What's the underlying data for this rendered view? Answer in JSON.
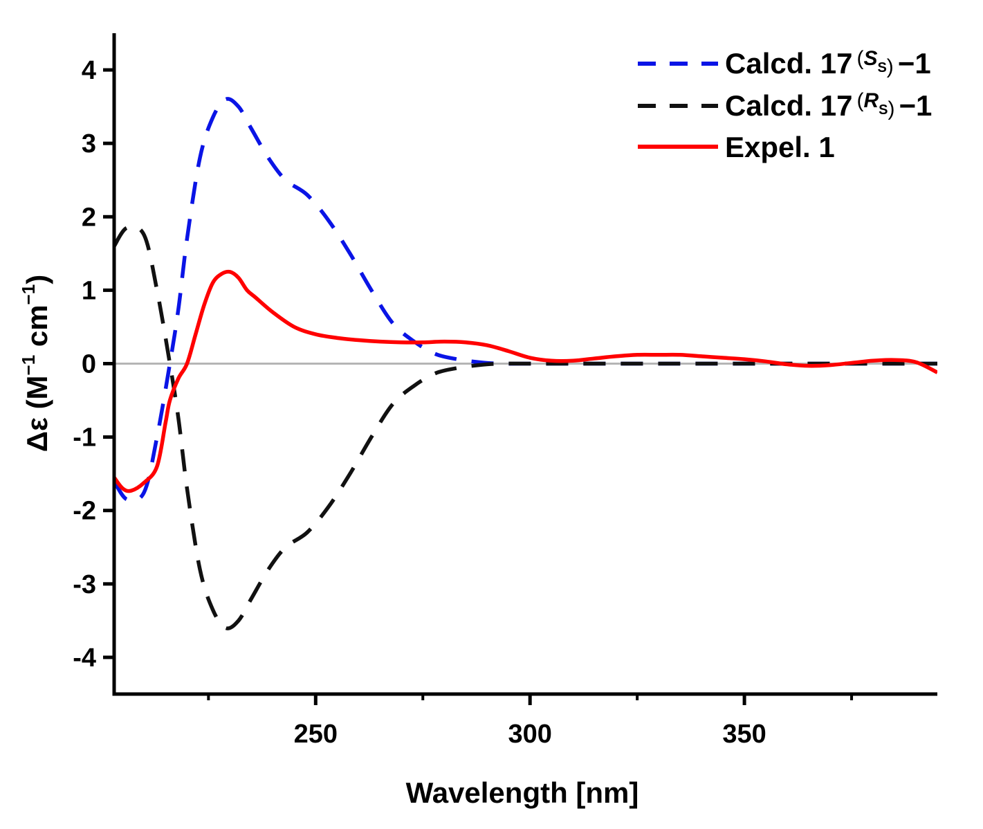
{
  "chart_data": {
    "type": "line",
    "xlabel": "Wavelength [nm]",
    "ylabel": {
      "prefix": "Δε (M",
      "sup1": "−1",
      "mid": " cm",
      "sup2": "−1",
      "suffix": ")"
    },
    "xlim": [
      203,
      395
    ],
    "ylim": [
      -4.5,
      4.5
    ],
    "x_major_ticks": [
      250,
      300,
      350
    ],
    "x_tick_labels": [
      "250",
      "300",
      "350"
    ],
    "x_minor_ticks": [
      225,
      275,
      325,
      375
    ],
    "y_major_ticks": [
      -4,
      -3,
      -2,
      -1,
      0,
      1,
      2,
      3,
      4
    ],
    "y_tick_labels": [
      "-4",
      "-3",
      "-2",
      "-1",
      "0",
      "1",
      "2",
      "3",
      "4"
    ],
    "zero_line": true,
    "grid": false,
    "legend": {
      "position": "top-right",
      "entries": [
        {
          "prefix": "Calcd. 17",
          "paren_open": "(",
          "letter": "S",
          "sub": "S",
          "paren_close": ")",
          "suffix": "−1"
        },
        {
          "prefix": "Calcd. 17",
          "paren_open": "(",
          "letter": "R",
          "sub": "S",
          "paren_close": ")",
          "suffix": "−1"
        },
        {
          "prefix": "Expel. 1"
        }
      ]
    },
    "series": [
      {
        "name": "Calcd. 17(Ss)-1",
        "color": "#0a14e6",
        "style": "dashed",
        "x": [
          203,
          206,
          210,
          213,
          216,
          218,
          220,
          223,
          226,
          229,
          232,
          235,
          239,
          243,
          248,
          253,
          258,
          263,
          268,
          273,
          278,
          283,
          288,
          293,
          300,
          320,
          350,
          395
        ],
        "y": [
          -1.6,
          -1.85,
          -1.75,
          -1.0,
          0.0,
          0.75,
          1.7,
          2.8,
          3.35,
          3.6,
          3.5,
          3.2,
          2.8,
          2.5,
          2.3,
          1.95,
          1.5,
          1.0,
          0.55,
          0.3,
          0.13,
          0.06,
          0.02,
          0.0,
          0.0,
          0.0,
          0.0,
          0.0
        ]
      },
      {
        "name": "Calcd. 17(Rs)-1",
        "color": "#111111",
        "style": "dashed",
        "x": [
          203,
          206,
          210,
          213,
          216,
          218,
          220,
          223,
          226,
          229,
          232,
          235,
          239,
          243,
          248,
          253,
          258,
          263,
          268,
          273,
          278,
          283,
          288,
          293,
          300,
          320,
          350,
          395
        ],
        "y": [
          1.6,
          1.85,
          1.75,
          1.0,
          0.0,
          -0.75,
          -1.7,
          -2.8,
          -3.35,
          -3.6,
          -3.5,
          -3.2,
          -2.8,
          -2.5,
          -2.3,
          -1.95,
          -1.5,
          -1.0,
          -0.55,
          -0.3,
          -0.13,
          -0.06,
          -0.02,
          0.0,
          0.0,
          0.0,
          0.0,
          0.0
        ]
      },
      {
        "name": "Expel. 1",
        "color": "#ff0000",
        "style": "solid",
        "x": [
          203,
          205,
          207,
          210,
          213,
          215,
          216,
          218,
          220,
          222,
          224,
          226,
          228,
          230,
          232,
          234,
          236,
          240,
          245,
          250,
          255,
          260,
          265,
          270,
          275,
          280,
          285,
          290,
          295,
          300,
          305,
          310,
          315,
          320,
          325,
          330,
          335,
          340,
          345,
          350,
          355,
          360,
          365,
          370,
          375,
          380,
          385,
          390,
          395
        ],
        "y": [
          -1.55,
          -1.7,
          -1.73,
          -1.62,
          -1.4,
          -0.8,
          -0.5,
          -0.2,
          0.0,
          0.4,
          0.8,
          1.1,
          1.22,
          1.25,
          1.17,
          1.0,
          0.9,
          0.7,
          0.5,
          0.4,
          0.35,
          0.32,
          0.3,
          0.29,
          0.29,
          0.3,
          0.29,
          0.25,
          0.17,
          0.08,
          0.04,
          0.04,
          0.07,
          0.1,
          0.12,
          0.12,
          0.12,
          0.1,
          0.08,
          0.06,
          0.03,
          -0.01,
          -0.03,
          -0.02,
          0.01,
          0.04,
          0.05,
          0.02,
          -0.12
        ]
      }
    ]
  }
}
